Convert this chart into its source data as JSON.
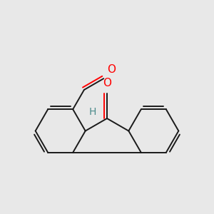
{
  "background_color": "#e8e8e8",
  "bond_color": "#1a1a1a",
  "oxygen_color": "#ff0000",
  "hydrogen_color": "#4a8a8a",
  "bond_width": 1.4,
  "figsize": [
    3.0,
    3.0
  ],
  "dpi": 100,
  "xlim": [
    0,
    10
  ],
  "ylim": [
    0,
    10
  ]
}
